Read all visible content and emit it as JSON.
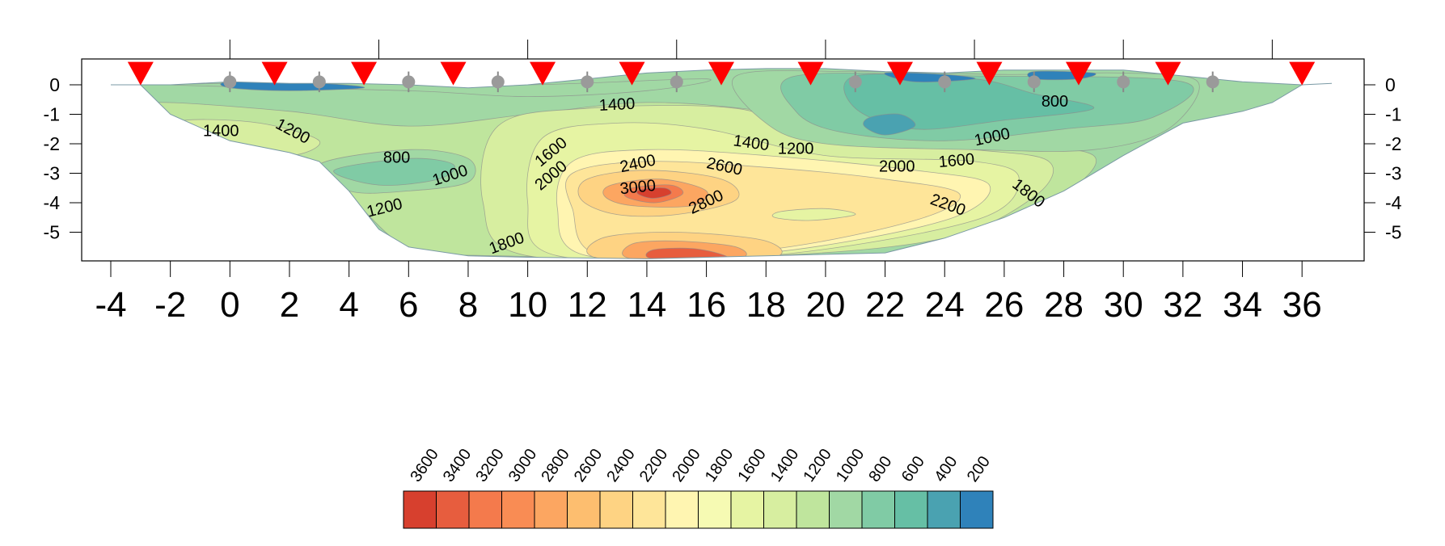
{
  "chart_data": {
    "type": "heatmap",
    "title": "",
    "xlabel": "",
    "ylabel": "",
    "x_ticks": [
      -4,
      -2,
      0,
      2,
      4,
      6,
      8,
      10,
      12,
      14,
      16,
      18,
      20,
      22,
      24,
      26,
      28,
      30,
      32,
      34,
      36
    ],
    "y_ticks": [
      0,
      -1,
      -2,
      -3,
      -4,
      -5
    ],
    "xlim": [
      -5,
      38
    ],
    "ylim": [
      -5.9,
      0.9
    ],
    "top_axis_ticks": [
      0,
      5,
      10,
      15,
      20,
      25,
      30,
      35
    ],
    "colorbar": {
      "levels": [
        3600,
        3400,
        3200,
        3000,
        2800,
        2600,
        2400,
        2200,
        2000,
        1800,
        1600,
        1400,
        1200,
        1000,
        800,
        600,
        400,
        200
      ],
      "colors": [
        "#d7402e",
        "#e75d3e",
        "#f47a4c",
        "#f98c54",
        "#fca661",
        "#fdbe6f",
        "#fed383",
        "#fee599",
        "#fff5b1",
        "#f6fab3",
        "#e6f4a3",
        "#d7eea0",
        "#bfe59d",
        "#a1d8a4",
        "#80cba5",
        "#66bfa5",
        "#4aa2b1",
        "#2f82ba"
      ]
    },
    "surface_profile": [
      {
        "x": -4,
        "y": 0.0
      },
      {
        "x": -2,
        "y": 0.0
      },
      {
        "x": 0,
        "y": 0.1
      },
      {
        "x": 2,
        "y": 0.05
      },
      {
        "x": 4,
        "y": 0.05
      },
      {
        "x": 6,
        "y": 0.0
      },
      {
        "x": 8,
        "y": -0.1
      },
      {
        "x": 10,
        "y": 0.0
      },
      {
        "x": 12,
        "y": 0.2
      },
      {
        "x": 14,
        "y": 0.4
      },
      {
        "x": 16,
        "y": 0.5
      },
      {
        "x": 18,
        "y": 0.55
      },
      {
        "x": 20,
        "y": 0.55
      },
      {
        "x": 22,
        "y": 0.45
      },
      {
        "x": 24,
        "y": 0.4
      },
      {
        "x": 26,
        "y": 0.5
      },
      {
        "x": 28,
        "y": 0.5
      },
      {
        "x": 30,
        "y": 0.5
      },
      {
        "x": 32,
        "y": 0.3
      },
      {
        "x": 34,
        "y": 0.1
      },
      {
        "x": 36,
        "y": 0.0
      },
      {
        "x": 37,
        "y": 0.05
      }
    ],
    "bottom_boundary": [
      {
        "x": -3,
        "y": 0.0
      },
      {
        "x": -2,
        "y": -1.0
      },
      {
        "x": 0,
        "y": -1.9
      },
      {
        "x": 2,
        "y": -2.3
      },
      {
        "x": 3,
        "y": -2.6
      },
      {
        "x": 4,
        "y": -3.6
      },
      {
        "x": 5,
        "y": -4.9
      },
      {
        "x": 6,
        "y": -5.5
      },
      {
        "x": 8,
        "y": -5.8
      },
      {
        "x": 10,
        "y": -5.85
      },
      {
        "x": 14,
        "y": -5.9
      },
      {
        "x": 18,
        "y": -5.8
      },
      {
        "x": 22,
        "y": -5.7
      },
      {
        "x": 24,
        "y": -5.2
      },
      {
        "x": 26,
        "y": -4.5
      },
      {
        "x": 28,
        "y": -3.6
      },
      {
        "x": 30,
        "y": -2.4
      },
      {
        "x": 32,
        "y": -1.3
      },
      {
        "x": 34,
        "y": -0.9
      },
      {
        "x": 35,
        "y": -0.6
      },
      {
        "x": 36,
        "y": 0.0
      }
    ],
    "zones": [
      {
        "value": 1200,
        "points": [
          {
            "x": -2.5,
            "y": -0.6
          },
          {
            "x": 2,
            "y": -0.9
          },
          {
            "x": 6,
            "y": -1.4
          },
          {
            "x": 10,
            "y": -1.0
          },
          {
            "x": 14,
            "y": -0.6
          },
          {
            "x": 18,
            "y": -0.9
          },
          {
            "x": 22,
            "y": -1.6
          },
          {
            "x": 26,
            "y": -2.0
          },
          {
            "x": 29,
            "y": -2.4
          },
          {
            "x": 28,
            "y": -3.7
          },
          {
            "x": 25,
            "y": -5.0
          },
          {
            "x": 18,
            "y": -5.8
          },
          {
            "x": 9,
            "y": -5.8
          },
          {
            "x": 6,
            "y": -5.5
          },
          {
            "x": 4,
            "y": -3.8
          },
          {
            "x": 2,
            "y": -2.4
          },
          {
            "x": -2,
            "y": -1.1
          }
        ]
      },
      {
        "value": 1400,
        "points": [
          {
            "x": 9,
            "y": -1.4
          },
          {
            "x": 12,
            "y": -0.8
          },
          {
            "x": 17,
            "y": -0.8
          },
          {
            "x": 20,
            "y": -1.8
          },
          {
            "x": 25,
            "y": -2.2
          },
          {
            "x": 27.5,
            "y": -2.6
          },
          {
            "x": 27,
            "y": -3.8
          },
          {
            "x": 24,
            "y": -5.2
          },
          {
            "x": 18,
            "y": -5.8
          },
          {
            "x": 10,
            "y": -5.8
          },
          {
            "x": 8.5,
            "y": -4.0
          }
        ]
      },
      {
        "value": 1400,
        "points": [
          {
            "x": -1.5,
            "y": -1.2
          },
          {
            "x": 1,
            "y": -1.3
          },
          {
            "x": 3,
            "y": -1.9
          },
          {
            "x": 2,
            "y": -2.4
          },
          {
            "x": 0,
            "y": -2.0
          },
          {
            "x": -2,
            "y": -1.6
          }
        ]
      },
      {
        "value": 1600,
        "points": [
          {
            "x": 10.5,
            "y": -1.8
          },
          {
            "x": 13,
            "y": -1.3
          },
          {
            "x": 16,
            "y": -1.5
          },
          {
            "x": 20,
            "y": -2.4
          },
          {
            "x": 25,
            "y": -2.6
          },
          {
            "x": 26.5,
            "y": -3.2
          },
          {
            "x": 25,
            "y": -4.6
          },
          {
            "x": 18,
            "y": -5.8
          },
          {
            "x": 11,
            "y": -5.8
          },
          {
            "x": 10,
            "y": -4.0
          }
        ]
      },
      {
        "value": 2000,
        "points": [
          {
            "x": 11.5,
            "y": -2.6
          },
          {
            "x": 14,
            "y": -2.2
          },
          {
            "x": 18,
            "y": -2.4
          },
          {
            "x": 23,
            "y": -2.9
          },
          {
            "x": 25.5,
            "y": -3.4
          },
          {
            "x": 24,
            "y": -4.6
          },
          {
            "x": 18,
            "y": -5.7
          },
          {
            "x": 12,
            "y": -5.8
          },
          {
            "x": 11,
            "y": -4.2
          }
        ]
      },
      {
        "value": 2200,
        "points": [
          {
            "x": 11.5,
            "y": -3.0
          },
          {
            "x": 14,
            "y": -2.6
          },
          {
            "x": 18,
            "y": -2.8
          },
          {
            "x": 22,
            "y": -3.2
          },
          {
            "x": 24.5,
            "y": -3.7
          },
          {
            "x": 23,
            "y": -4.6
          },
          {
            "x": 18,
            "y": -5.6
          },
          {
            "x": 12.5,
            "y": -5.8
          },
          {
            "x": 11.5,
            "y": -4.2
          }
        ]
      },
      {
        "value": 2400,
        "points": [
          {
            "x": 12,
            "y": -3.2
          },
          {
            "x": 14,
            "y": -2.9
          },
          {
            "x": 16.5,
            "y": -3.2
          },
          {
            "x": 17,
            "y": -3.9
          },
          {
            "x": 15,
            "y": -4.4
          },
          {
            "x": 13,
            "y": -4.4
          },
          {
            "x": 11.8,
            "y": -3.9
          }
        ]
      },
      {
        "value": 2400,
        "points": [
          {
            "x": 12.5,
            "y": -5.2
          },
          {
            "x": 15,
            "y": -5.0
          },
          {
            "x": 18,
            "y": -5.3
          },
          {
            "x": 18,
            "y": -5.9
          },
          {
            "x": 12.5,
            "y": -5.9
          }
        ]
      },
      {
        "value": 2800,
        "points": [
          {
            "x": 12.8,
            "y": -3.4
          },
          {
            "x": 14.5,
            "y": -3.2
          },
          {
            "x": 16,
            "y": -3.6
          },
          {
            "x": 15.5,
            "y": -4.1
          },
          {
            "x": 13.5,
            "y": -4.1
          },
          {
            "x": 12.6,
            "y": -3.8
          }
        ]
      },
      {
        "value": 2800,
        "points": [
          {
            "x": 13.5,
            "y": -5.4
          },
          {
            "x": 15,
            "y": -5.3
          },
          {
            "x": 17,
            "y": -5.5
          },
          {
            "x": 17,
            "y": -5.9
          },
          {
            "x": 13.5,
            "y": -5.9
          }
        ]
      },
      {
        "value": 3200,
        "points": [
          {
            "x": 13.5,
            "y": -3.5
          },
          {
            "x": 14.8,
            "y": -3.4
          },
          {
            "x": 15.2,
            "y": -3.7
          },
          {
            "x": 14.3,
            "y": -4.0
          },
          {
            "x": 13.3,
            "y": -3.8
          }
        ]
      },
      {
        "value": 3400,
        "points": [
          {
            "x": 14.2,
            "y": -5.6
          },
          {
            "x": 15.5,
            "y": -5.55
          },
          {
            "x": 16.5,
            "y": -5.75
          },
          {
            "x": 16.5,
            "y": -5.9
          },
          {
            "x": 14.2,
            "y": -5.9
          }
        ]
      },
      {
        "value": 3600,
        "points": [
          {
            "x": 13.8,
            "y": -3.55
          },
          {
            "x": 14.6,
            "y": -3.5
          },
          {
            "x": 14.8,
            "y": -3.7
          },
          {
            "x": 14.2,
            "y": -3.85
          },
          {
            "x": 13.7,
            "y": -3.7
          }
        ]
      },
      {
        "value": 1600,
        "points": [
          {
            "x": 18.5,
            "y": -4.3
          },
          {
            "x": 20,
            "y": -4.2
          },
          {
            "x": 21,
            "y": -4.4
          },
          {
            "x": 19.5,
            "y": -4.6
          },
          {
            "x": 18.3,
            "y": -4.5
          }
        ]
      },
      {
        "value": 1000,
        "points": [
          {
            "x": -2,
            "y": 0.0
          },
          {
            "x": 6,
            "y": -0.2
          },
          {
            "x": 10,
            "y": -0.4
          },
          {
            "x": 14,
            "y": -0.2
          },
          {
            "x": 16,
            "y": 0.2
          },
          {
            "x": 10,
            "y": 0.0
          },
          {
            "x": 4,
            "y": 0.05
          }
        ]
      },
      {
        "value": 1000,
        "points": [
          {
            "x": 3,
            "y": -2.7
          },
          {
            "x": 6,
            "y": -2.2
          },
          {
            "x": 8,
            "y": -2.5
          },
          {
            "x": 8,
            "y": -3.3
          },
          {
            "x": 6,
            "y": -3.6
          },
          {
            "x": 4,
            "y": -3.6
          }
        ]
      },
      {
        "value": 800,
        "points": [
          {
            "x": 3.5,
            "y": -2.9
          },
          {
            "x": 6,
            "y": -2.5
          },
          {
            "x": 7.5,
            "y": -2.7
          },
          {
            "x": 7,
            "y": -3.2
          },
          {
            "x": 5,
            "y": -3.4
          }
        ]
      },
      {
        "value": 1000,
        "points": [
          {
            "x": 17,
            "y": 0.3
          },
          {
            "x": 21,
            "y": 0.45
          },
          {
            "x": 26,
            "y": 0.35
          },
          {
            "x": 30,
            "y": 0.4
          },
          {
            "x": 32.5,
            "y": 0.1
          },
          {
            "x": 31.5,
            "y": -1.5
          },
          {
            "x": 29,
            "y": -2.2
          },
          {
            "x": 25,
            "y": -2.2
          },
          {
            "x": 20,
            "y": -2.0
          },
          {
            "x": 18,
            "y": -1.3
          }
        ]
      },
      {
        "value": 800,
        "points": [
          {
            "x": 19,
            "y": 0.3
          },
          {
            "x": 25,
            "y": 0.3
          },
          {
            "x": 32,
            "y": 0.1
          },
          {
            "x": 31,
            "y": -1.1
          },
          {
            "x": 28,
            "y": -1.5
          },
          {
            "x": 24,
            "y": -1.9
          },
          {
            "x": 20.5,
            "y": -1.6
          },
          {
            "x": 19,
            "y": -0.9
          }
        ]
      },
      {
        "value": 600,
        "points": [
          {
            "x": 21,
            "y": 0.3
          },
          {
            "x": 25,
            "y": 0.2
          },
          {
            "x": 27,
            "y": -0.3
          },
          {
            "x": 29,
            "y": -0.8
          },
          {
            "x": 26,
            "y": -1.2
          },
          {
            "x": 23,
            "y": -1.5
          },
          {
            "x": 21,
            "y": -0.8
          }
        ]
      },
      {
        "value": 400,
        "points": [
          {
            "x": 21.5,
            "y": -1.1
          },
          {
            "x": 22.5,
            "y": -1.0
          },
          {
            "x": 23,
            "y": -1.4
          },
          {
            "x": 22,
            "y": -1.7
          },
          {
            "x": 21.3,
            "y": -1.4
          }
        ]
      },
      {
        "value": 200,
        "points": [
          {
            "x": 0,
            "y": 0.1
          },
          {
            "x": 3,
            "y": 0.05
          },
          {
            "x": 4.5,
            "y": -0.1
          },
          {
            "x": 2,
            "y": -0.2
          },
          {
            "x": 0,
            "y": -0.1
          }
        ]
      },
      {
        "value": 200,
        "points": [
          {
            "x": 22,
            "y": 0.4
          },
          {
            "x": 24,
            "y": 0.35
          },
          {
            "x": 25,
            "y": 0.2
          },
          {
            "x": 23,
            "y": 0.1
          }
        ]
      },
      {
        "value": 200,
        "points": [
          {
            "x": 27,
            "y": 0.45
          },
          {
            "x": 29,
            "y": 0.4
          },
          {
            "x": 28.5,
            "y": 0.2
          },
          {
            "x": 27,
            "y": 0.2
          }
        ]
      }
    ],
    "contour_labels": [
      {
        "text": "1400",
        "x": -0.3,
        "y": -1.6,
        "angle": 0
      },
      {
        "text": "1200",
        "x": 2.1,
        "y": -1.6,
        "angle": 28
      },
      {
        "text": "800",
        "x": 5.6,
        "y": -2.5,
        "angle": 0
      },
      {
        "text": "1000",
        "x": 7.4,
        "y": -3.1,
        "angle": -18
      },
      {
        "text": "1200",
        "x": 5.2,
        "y": -4.2,
        "angle": -14
      },
      {
        "text": "1600",
        "x": 10.8,
        "y": -2.3,
        "angle": -40
      },
      {
        "text": "2000",
        "x": 10.8,
        "y": -3.1,
        "angle": -40
      },
      {
        "text": "1400",
        "x": 13.0,
        "y": -0.7,
        "angle": -3
      },
      {
        "text": "2400",
        "x": 13.7,
        "y": -2.7,
        "angle": -12
      },
      {
        "text": "2600",
        "x": 16.6,
        "y": -2.8,
        "angle": 12
      },
      {
        "text": "3000",
        "x": 13.7,
        "y": -3.5,
        "angle": -6
      },
      {
        "text": "2800",
        "x": 16.0,
        "y": -4.0,
        "angle": -25
      },
      {
        "text": "1800",
        "x": 9.3,
        "y": -5.4,
        "angle": -20
      },
      {
        "text": "1400",
        "x": 17.5,
        "y": -2.0,
        "angle": 8
      },
      {
        "text": "1200",
        "x": 19.0,
        "y": -2.2,
        "angle": 0
      },
      {
        "text": "2000",
        "x": 22.4,
        "y": -2.8,
        "angle": 0
      },
      {
        "text": "1600",
        "x": 24.4,
        "y": -2.6,
        "angle": -5
      },
      {
        "text": "1000",
        "x": 25.6,
        "y": -1.8,
        "angle": -12
      },
      {
        "text": "800",
        "x": 27.7,
        "y": -0.6,
        "angle": 0
      },
      {
        "text": "1800",
        "x": 26.8,
        "y": -3.7,
        "angle": 38
      },
      {
        "text": "2200",
        "x": 24.1,
        "y": -4.1,
        "angle": 20
      }
    ],
    "source_markers": [
      -3,
      1.5,
      4.5,
      7.5,
      10.5,
      13.5,
      16.5,
      19.5,
      22.5,
      25.5,
      28.5,
      31.5,
      36
    ],
    "receiver_markers": [
      0,
      3,
      6,
      9,
      12,
      15,
      21,
      24,
      27,
      30,
      33
    ],
    "grid": false,
    "legend_position": "bottom-center"
  }
}
